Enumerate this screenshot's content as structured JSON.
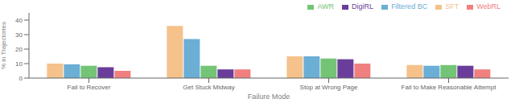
{
  "chart_data": {
    "type": "bar",
    "xlabel": "Failure Mode",
    "ylabel": "% in Trajectories",
    "categories": [
      "Fail to Recover",
      "Get Stuck Midway",
      "Stop at Wrong Page",
      "Fail to Make Reasonable Attempt"
    ],
    "series": [
      {
        "name": "SFT",
        "color": "#F4C28A",
        "values": [
          10,
          36,
          15,
          9
        ]
      },
      {
        "name": "Filtered BC",
        "color": "#6BAED6",
        "values": [
          9.5,
          27,
          15,
          8.5
        ]
      },
      {
        "name": "AWR",
        "color": "#74C476",
        "values": [
          8.5,
          8.5,
          13.5,
          9
        ]
      },
      {
        "name": "DigiRL",
        "color": "#6A3D9A",
        "values": [
          7.5,
          6,
          13,
          8.5
        ]
      },
      {
        "name": "WebRL",
        "color": "#F08080",
        "values": [
          5,
          6,
          10,
          6
        ]
      }
    ],
    "ylim": [
      0,
      45
    ],
    "yticks": [
      0,
      10,
      20,
      30,
      40
    ],
    "grid": false,
    "legend": "upper right"
  }
}
